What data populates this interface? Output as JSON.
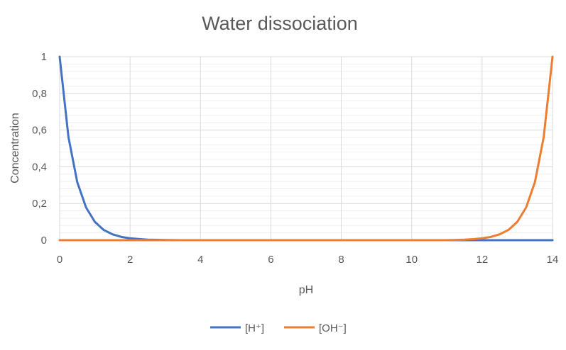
{
  "chart_data": {
    "type": "line",
    "title": "Water dissociation",
    "xlabel": "pH",
    "ylabel": "Concentration",
    "xlim": [
      0,
      14
    ],
    "ylim": [
      0,
      1
    ],
    "x_ticks": [
      "0",
      "2",
      "4",
      "6",
      "8",
      "10",
      "12",
      "14"
    ],
    "y_ticks": [
      "0",
      "0,2",
      "0,4",
      "0,6",
      "0,8",
      "1"
    ],
    "grid": true,
    "legend": "bottom",
    "x": [
      0,
      0.25,
      0.5,
      0.75,
      1,
      1.25,
      1.5,
      1.75,
      2,
      2.5,
      3,
      3.5,
      4,
      5,
      6,
      7,
      8,
      9,
      10,
      11,
      11.5,
      11.75,
      12,
      12.25,
      12.5,
      12.75,
      13,
      13.25,
      13.5,
      13.75,
      14
    ],
    "series": [
      {
        "name": "[H⁺]",
        "color": "#4472c4",
        "values": [
          1,
          0.562,
          0.316,
          0.178,
          0.1,
          0.056,
          0.032,
          0.018,
          0.01,
          0.003,
          0.001,
          0,
          0,
          0,
          0,
          0,
          0,
          0,
          0,
          0,
          0,
          0,
          0,
          0,
          0,
          0,
          0,
          0,
          0,
          0,
          0
        ]
      },
      {
        "name": "[OH⁻]",
        "color": "#ed7d31",
        "values": [
          0,
          0,
          0,
          0,
          0,
          0,
          0,
          0,
          0,
          0,
          0,
          0,
          0,
          0,
          0,
          0,
          0,
          0,
          0,
          0,
          0.003,
          0.006,
          0.01,
          0.018,
          0.032,
          0.056,
          0.1,
          0.178,
          0.316,
          0.562,
          1
        ]
      }
    ]
  }
}
